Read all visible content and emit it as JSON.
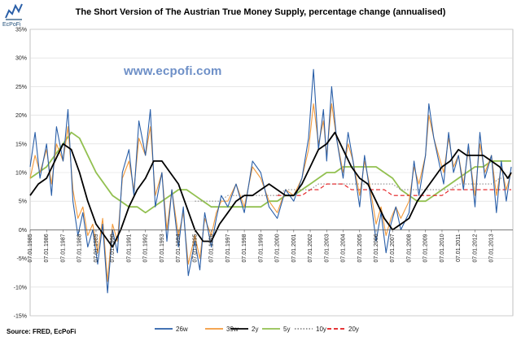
{
  "brand": {
    "name": "EcPoFi",
    "watermark": "www.ecpofi.com"
  },
  "source": "Source: FRED, EcPoFi",
  "chart_data": {
    "type": "line",
    "title": "The Short Version of The Austrian True Money Supply, percentage change (annualised)",
    "xlabel": "",
    "ylabel": "",
    "ylim": [
      -15,
      35
    ],
    "y_ticks": [
      -15,
      -10,
      -5,
      0,
      5,
      10,
      15,
      20,
      25,
      30,
      35
    ],
    "y_tick_labels": [
      "-15%",
      "-10%",
      "-5%",
      "0%",
      "5%",
      "10%",
      "15%",
      "20%",
      "25%",
      "30%",
      "35%"
    ],
    "xlim": [
      1985.0,
      2014.3
    ],
    "x_ticks": [
      1985.0,
      1986.0,
      1987.0,
      1988.0,
      1989.0,
      1990.0,
      1991.0,
      1992.0,
      1993.0,
      1994.0,
      1995.0,
      1996.0,
      1997.0,
      1998.0,
      1999.0,
      2000.0,
      2001.0,
      2002.0,
      2003.0,
      2004.0,
      2005.0,
      2006.0,
      2007.0,
      2008.0,
      2009.0,
      2010.0,
      2011.0,
      2012.0,
      2013.0
    ],
    "x_tick_labels": [
      "07.01.1985",
      "07.01.1986",
      "07.01.1987",
      "07.01.1988",
      "07.01.1989",
      "07.01.1990",
      "07.01.1991",
      "07.01.1992",
      "07.01.1993",
      "07.01.1994",
      "07.01.1995",
      "07.01.1996",
      "07.01.1997",
      "07.01.1998",
      "07.01.1999",
      "07.01.2000",
      "07.01.2001",
      "07.01.2002",
      "07.01.2003",
      "07.01.2004",
      "07.01.2005",
      "07.01.2006",
      "07.01.2007",
      "07.01.2008",
      "07.01.2009",
      "07.01.2010",
      "07.01.2011",
      "07.01.2012",
      "07.01.2013"
    ],
    "grid": "horizontal",
    "legend_position": "bottom",
    "series": [
      {
        "name": "26w",
        "color": "#2a5fa8",
        "dash": "solid",
        "x": [
          1985.0,
          1985.3,
          1985.6,
          1986.0,
          1986.3,
          1986.6,
          1987.0,
          1987.3,
          1987.6,
          1987.9,
          1988.2,
          1988.5,
          1988.8,
          1989.1,
          1989.4,
          1989.7,
          1990.0,
          1990.3,
          1990.6,
          1991.0,
          1991.3,
          1991.6,
          1992.0,
          1992.3,
          1992.6,
          1993.0,
          1993.3,
          1993.6,
          1994.0,
          1994.3,
          1994.6,
          1995.0,
          1995.3,
          1995.6,
          1996.0,
          1996.3,
          1996.6,
          1997.0,
          1997.5,
          1998.0,
          1998.5,
          1999.0,
          1999.5,
          2000.0,
          2000.5,
          2001.0,
          2001.5,
          2001.9,
          2002.2,
          2002.5,
          2002.8,
          2003.0,
          2003.3,
          2003.6,
          2004.0,
          2004.3,
          2004.6,
          2005.0,
          2005.3,
          2005.6,
          2006.0,
          2006.3,
          2006.6,
          2006.9,
          2007.2,
          2007.5,
          2008.0,
          2008.3,
          2008.6,
          2009.0,
          2009.2,
          2009.5,
          2009.8,
          2010.1,
          2010.4,
          2010.7,
          2011.0,
          2011.3,
          2011.6,
          2012.0,
          2012.3,
          2012.6,
          2013.0,
          2013.3,
          2013.6,
          2013.9,
          2014.2
        ],
        "y": [
          11,
          17,
          9,
          15,
          6,
          18,
          12,
          21,
          5,
          -1,
          3,
          -3,
          0,
          -6,
          1,
          -11,
          0,
          -4,
          10,
          14,
          6,
          19,
          13,
          21,
          4,
          10,
          -2,
          7,
          -3,
          4,
          -8,
          -2,
          -7,
          3,
          -3,
          2,
          6,
          4,
          8,
          3,
          12,
          10,
          4,
          2,
          7,
          5,
          9,
          16,
          28,
          14,
          21,
          12,
          25,
          16,
          9,
          17,
          12,
          4,
          13,
          7,
          -2,
          3,
          -4,
          1,
          4,
          0,
          3,
          12,
          6,
          13,
          22,
          16,
          12,
          8,
          17,
          10,
          13,
          7,
          15,
          4,
          17,
          9,
          13,
          3,
          12,
          5,
          11
        ]
      },
      {
        "name": "39w",
        "color": "#f29a3c",
        "dash": "solid",
        "x": [
          1985.0,
          1985.3,
          1985.6,
          1986.0,
          1986.3,
          1986.6,
          1987.0,
          1987.3,
          1987.6,
          1987.9,
          1988.2,
          1988.5,
          1988.8,
          1989.1,
          1989.4,
          1989.7,
          1990.0,
          1990.3,
          1990.6,
          1991.0,
          1991.3,
          1991.6,
          1992.0,
          1992.3,
          1992.6,
          1993.0,
          1993.3,
          1993.6,
          1994.0,
          1994.3,
          1994.6,
          1995.0,
          1995.3,
          1995.6,
          1996.0,
          1996.3,
          1996.6,
          1997.0,
          1997.5,
          1998.0,
          1998.5,
          1999.0,
          1999.5,
          2000.0,
          2000.5,
          2001.0,
          2001.5,
          2001.9,
          2002.2,
          2002.5,
          2002.8,
          2003.0,
          2003.3,
          2003.6,
          2004.0,
          2004.3,
          2004.6,
          2005.0,
          2005.3,
          2005.6,
          2006.0,
          2006.3,
          2006.6,
          2006.9,
          2007.2,
          2007.5,
          2008.0,
          2008.3,
          2008.6,
          2009.0,
          2009.2,
          2009.5,
          2009.8,
          2010.1,
          2010.4,
          2010.7,
          2011.0,
          2011.3,
          2011.6,
          2012.0,
          2012.3,
          2012.6,
          2013.0,
          2013.3,
          2013.6,
          2013.9,
          2014.2
        ],
        "y": [
          9,
          13,
          10,
          14,
          8,
          15,
          12,
          18,
          7,
          2,
          4,
          -1,
          1,
          -4,
          2,
          -9,
          1,
          -2,
          9,
          12,
          7,
          16,
          13,
          18,
          6,
          10,
          0,
          7,
          -1,
          3,
          -6,
          -1,
          -5,
          2,
          -1,
          3,
          5,
          5,
          8,
          4,
          11,
          9,
          5,
          3,
          7,
          6,
          9,
          14,
          22,
          15,
          19,
          13,
          22,
          16,
          10,
          15,
          12,
          6,
          12,
          8,
          1,
          4,
          -1,
          2,
          4,
          2,
          5,
          11,
          8,
          13,
          20,
          16,
          13,
          10,
          16,
          11,
          13,
          8,
          14,
          6,
          15,
          10,
          13,
          6,
          11,
          7,
          10
        ]
      },
      {
        "name": "2y",
        "color": "#000000",
        "dash": "solid",
        "x": [
          1985.0,
          1985.5,
          1986.0,
          1986.5,
          1987.0,
          1987.5,
          1988.0,
          1988.5,
          1989.0,
          1989.5,
          1990.0,
          1990.5,
          1991.0,
          1991.5,
          1992.0,
          1992.5,
          1993.0,
          1993.5,
          1994.0,
          1994.5,
          1995.0,
          1995.5,
          1996.0,
          1996.5,
          1997.0,
          1997.5,
          1998.0,
          1998.5,
          1999.0,
          1999.5,
          2000.0,
          2000.5,
          2001.0,
          2001.5,
          2002.0,
          2002.5,
          2003.0,
          2003.5,
          2004.0,
          2004.5,
          2005.0,
          2005.5,
          2006.0,
          2006.5,
          2007.0,
          2007.5,
          2008.0,
          2008.5,
          2009.0,
          2009.5,
          2010.0,
          2010.5,
          2011.0,
          2011.5,
          2012.0,
          2012.5,
          2013.0,
          2013.5,
          2014.0,
          2014.2
        ],
        "y": [
          6,
          8,
          9,
          12,
          15,
          14,
          10,
          5,
          1,
          -1,
          -3,
          0,
          4,
          7,
          9,
          12,
          12,
          10,
          8,
          4,
          0,
          -2,
          -2,
          1,
          3,
          5,
          6,
          6,
          7,
          8,
          7,
          6,
          6,
          8,
          11,
          14,
          15,
          17,
          14,
          11,
          9,
          8,
          5,
          2,
          0,
          1,
          2,
          5,
          7,
          9,
          11,
          12,
          14,
          13,
          13,
          13,
          12,
          11,
          9,
          10
        ]
      },
      {
        "name": "5y",
        "color": "#92c050",
        "dash": "solid",
        "x": [
          1985.0,
          1985.5,
          1986.0,
          1986.5,
          1987.0,
          1987.5,
          1988.0,
          1988.5,
          1989.0,
          1989.5,
          1990.0,
          1990.5,
          1991.0,
          1991.5,
          1992.0,
          1992.5,
          1993.0,
          1993.5,
          1994.0,
          1994.5,
          1995.0,
          1995.5,
          1996.0,
          1996.5,
          1997.0,
          1997.5,
          1998.0,
          1998.5,
          1999.0,
          1999.5,
          2000.0,
          2000.5,
          2001.0,
          2001.5,
          2002.0,
          2002.5,
          2003.0,
          2003.5,
          2004.0,
          2004.5,
          2005.0,
          2005.5,
          2006.0,
          2006.5,
          2007.0,
          2007.5,
          2008.0,
          2008.5,
          2009.0,
          2009.5,
          2010.0,
          2010.5,
          2011.0,
          2011.5,
          2012.0,
          2012.5,
          2013.0,
          2013.5,
          2014.0,
          2014.2
        ],
        "y": [
          9,
          10,
          11,
          13,
          15,
          17,
          16,
          13,
          10,
          8,
          6,
          5,
          4,
          4,
          3,
          4,
          5,
          6,
          7,
          7,
          6,
          5,
          4,
          4,
          4,
          4,
          4,
          4,
          4,
          5,
          5,
          6,
          6,
          7,
          8,
          9,
          10,
          10,
          11,
          11,
          11,
          11,
          11,
          10,
          9,
          7,
          6,
          5,
          5,
          6,
          7,
          8,
          9,
          10,
          11,
          11,
          12,
          12,
          12,
          12
        ]
      },
      {
        "name": "10y",
        "color": "#8d8d8d",
        "dash": "dotted",
        "x": [
          1995.0,
          1995.5,
          1996.0,
          1996.5,
          1997.0,
          1997.5,
          1998.0,
          1998.5,
          1999.0,
          1999.5,
          2000.0,
          2000.5,
          2001.0,
          2001.5,
          2002.0,
          2002.5,
          2003.0,
          2003.5,
          2004.0,
          2004.5,
          2005.0,
          2005.5,
          2006.0,
          2006.5,
          2007.0,
          2007.5,
          2008.0,
          2008.5,
          2009.0,
          2009.5,
          2010.0,
          2010.5,
          2011.0,
          2011.5,
          2012.0,
          2012.5,
          2013.0,
          2013.5,
          2014.0,
          2014.2
        ],
        "y": [
          5,
          5,
          5,
          5,
          6,
          6,
          6,
          6,
          6,
          6,
          6,
          7,
          7,
          7,
          7,
          8,
          8,
          8,
          8,
          8,
          8,
          8,
          8,
          8,
          8,
          7,
          7,
          7,
          7,
          7,
          7,
          7,
          8,
          8,
          8,
          8,
          8,
          9,
          9,
          9
        ]
      },
      {
        "name": "20y",
        "color": "#e31a1c",
        "dash": "dashed",
        "x": [
          2000.0,
          2000.5,
          2001.0,
          2001.5,
          2002.0,
          2002.5,
          2003.0,
          2003.5,
          2004.0,
          2004.5,
          2005.0,
          2005.5,
          2006.0,
          2006.5,
          2007.0,
          2007.5,
          2008.0,
          2008.5,
          2009.0,
          2009.5,
          2010.0,
          2010.5,
          2011.0,
          2011.5,
          2012.0,
          2012.5,
          2013.0,
          2013.5,
          2014.0,
          2014.2
        ],
        "y": [
          6,
          6,
          6,
          6,
          7,
          7,
          8,
          8,
          8,
          7,
          7,
          7,
          7,
          7,
          6,
          6,
          6,
          6,
          6,
          6,
          6,
          7,
          7,
          7,
          7,
          7,
          7,
          7,
          7,
          7
        ]
      }
    ]
  }
}
